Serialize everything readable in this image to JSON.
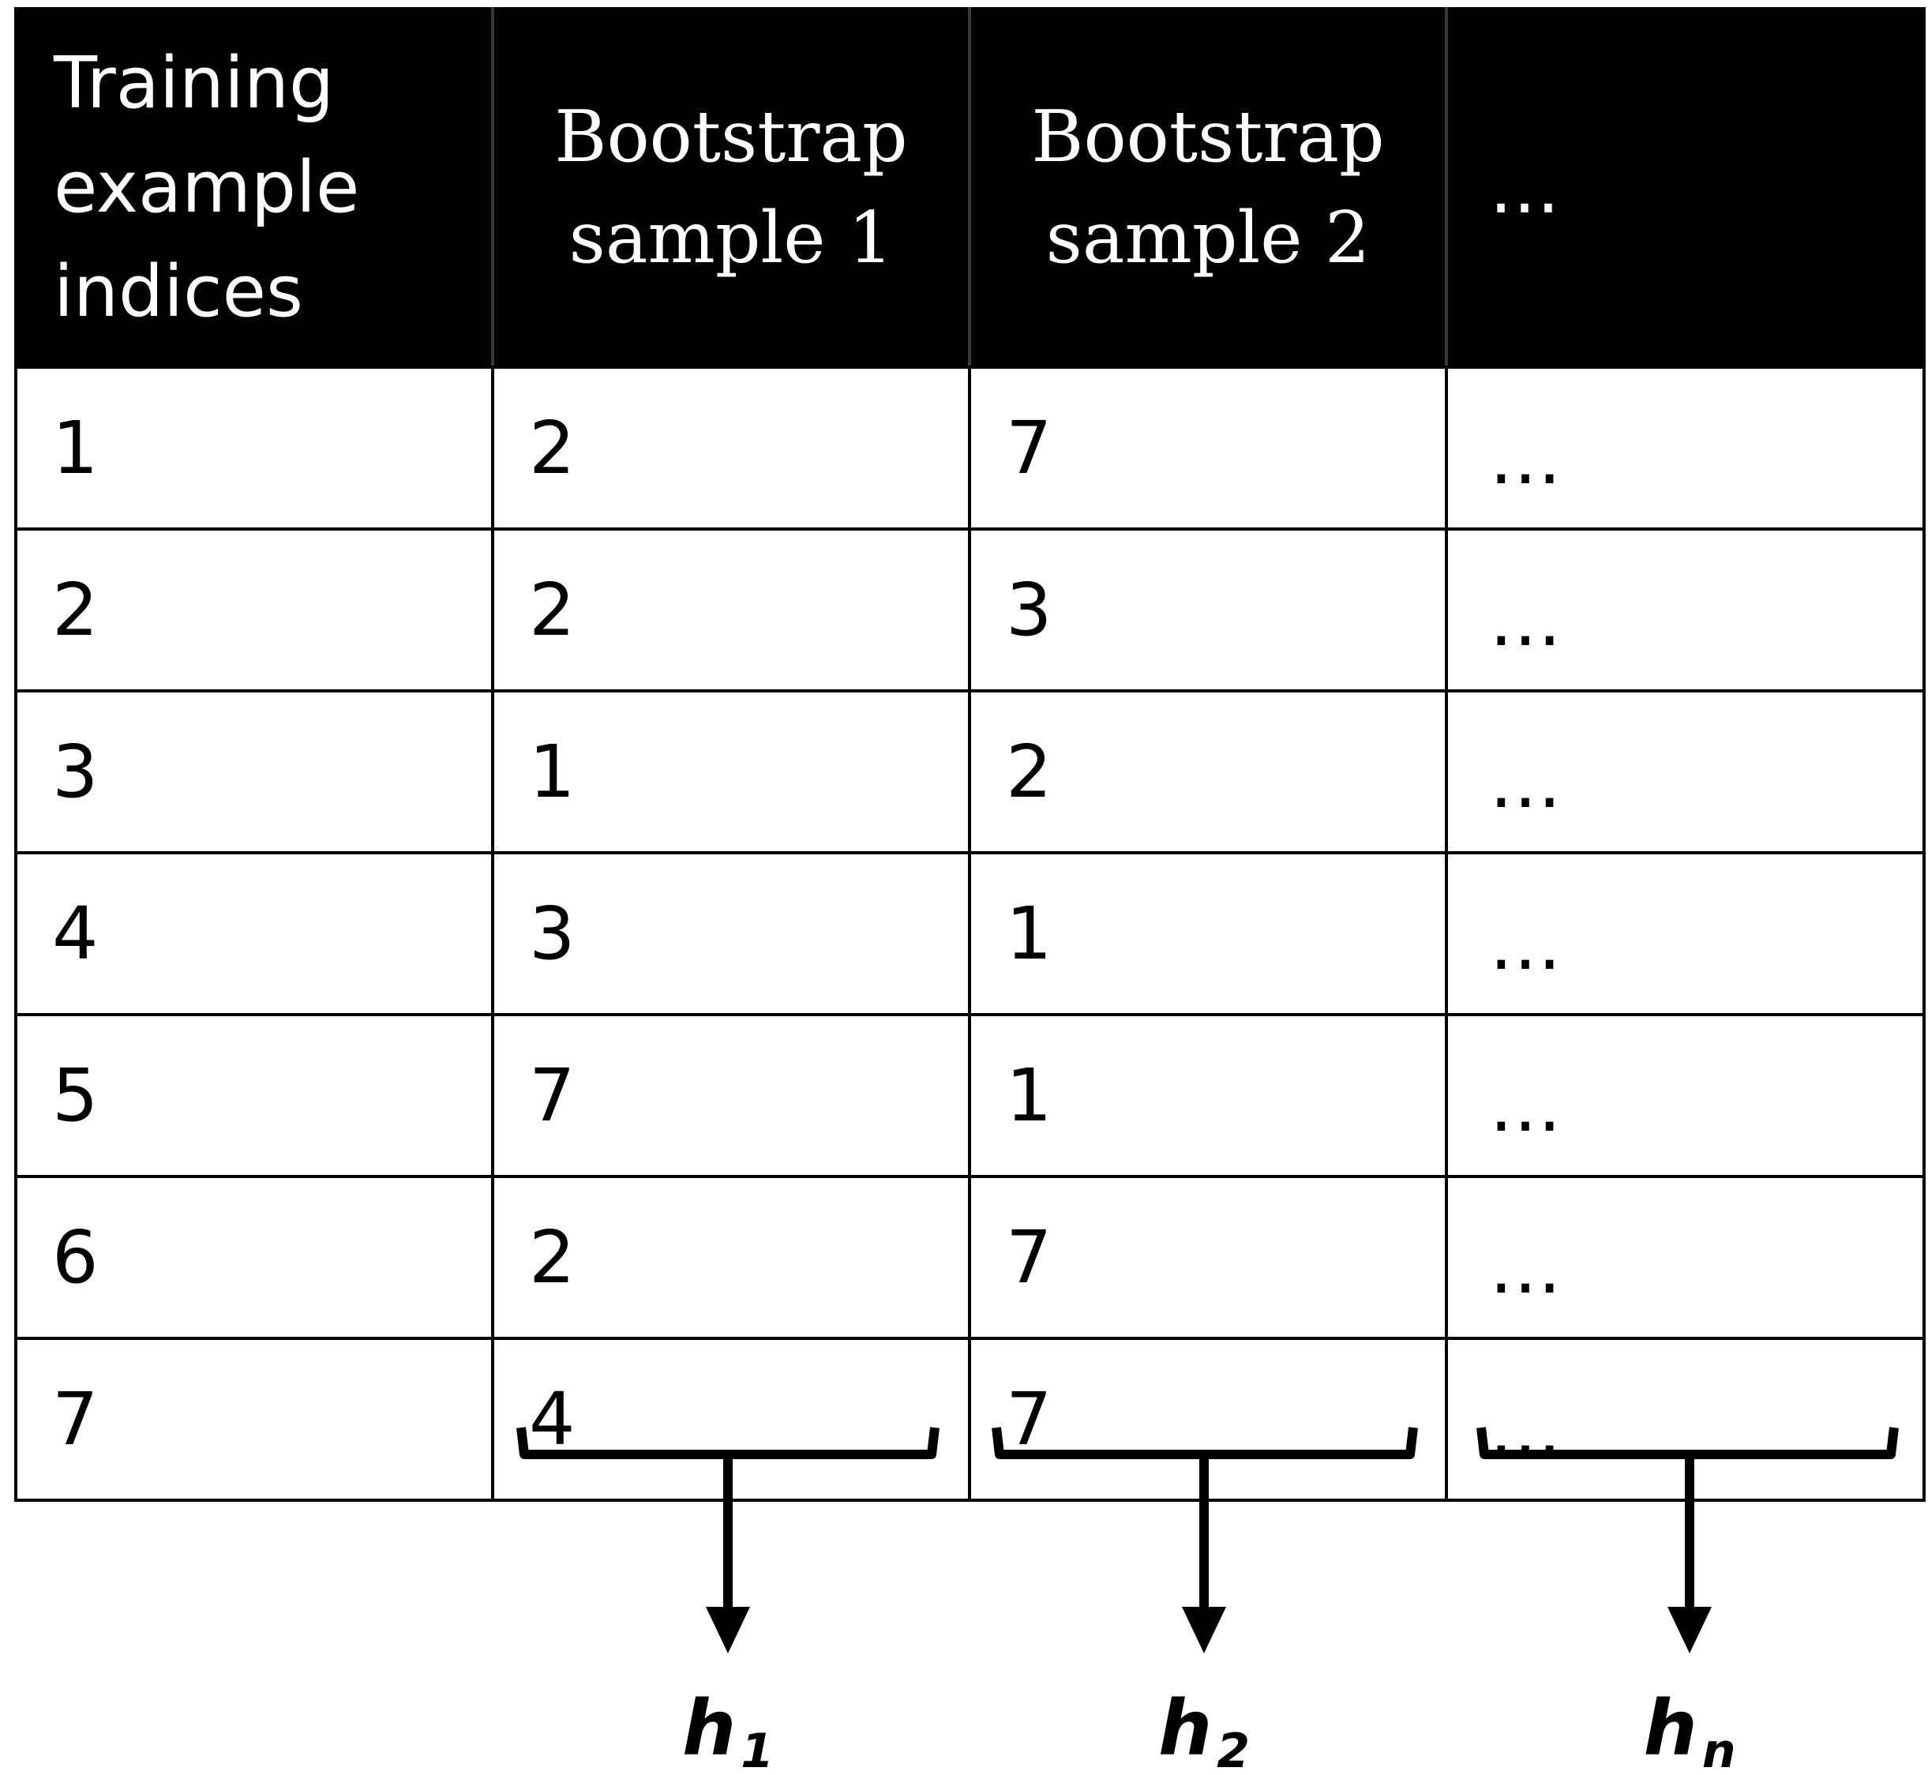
{
  "table": {
    "headers": [
      "Training example indices",
      "Bootstrap sample 1",
      "Bootstrap sample 2",
      "…"
    ],
    "header_lines": [
      [
        "Training",
        "example",
        "indices"
      ],
      [
        "Bootstrap",
        "sample 1"
      ],
      [
        "Bootstrap",
        "sample 2"
      ],
      [
        "…"
      ]
    ],
    "rows": [
      [
        "1",
        "2",
        "7",
        "…"
      ],
      [
        "2",
        "2",
        "3",
        "…"
      ],
      [
        "3",
        "1",
        "2",
        "…"
      ],
      [
        "4",
        "3",
        "1",
        "…"
      ],
      [
        "5",
        "7",
        "1",
        "…"
      ],
      [
        "6",
        "2",
        "7",
        "…"
      ],
      [
        "7",
        "4",
        "7",
        "…"
      ]
    ]
  },
  "classifiers": [
    {
      "base": "h",
      "sub": "1"
    },
    {
      "base": "h",
      "sub": "2"
    },
    {
      "base": "h",
      "sub": "n"
    }
  ]
}
